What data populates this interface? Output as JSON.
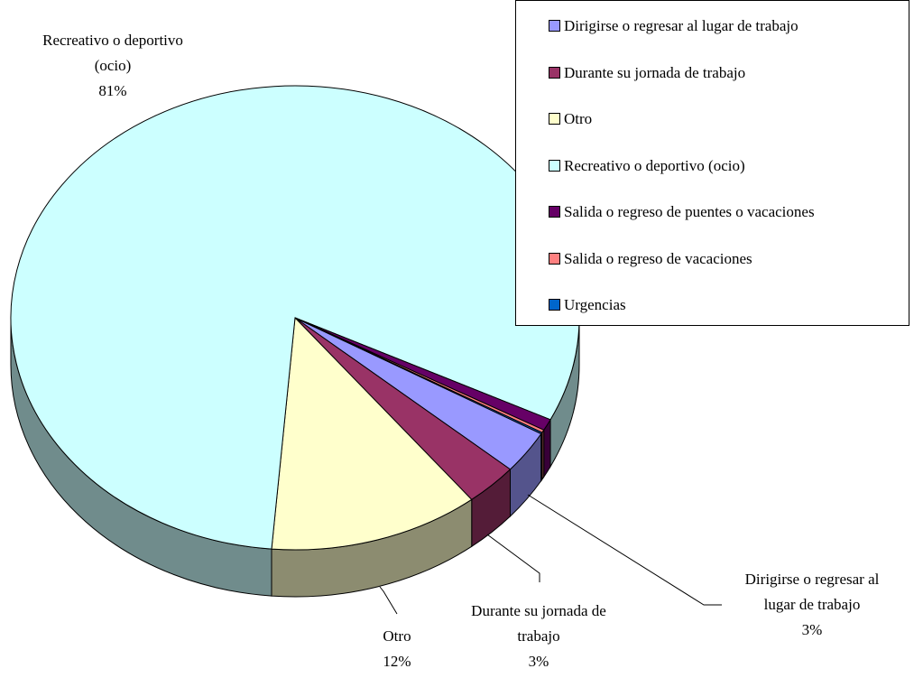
{
  "chart_data": {
    "type": "pie3d",
    "categories": [
      "Dirigirse o regresar al lugar de trabajo",
      "Durante su jornada de trabajo",
      "Otro",
      "Recreativo o deportivo (ocio)",
      "Salida o regreso de puentes o vacaciones",
      "Salida o regreso de vacaciones",
      "Urgencias"
    ],
    "values": [
      3,
      3,
      12,
      81,
      0.8,
      0.2,
      0.1
    ],
    "value_labels": [
      "3%",
      "3%",
      "12%",
      "81%",
      null,
      null,
      null
    ],
    "colors": [
      "#9999ff",
      "#993366",
      "#ffffcc",
      "#ccffff",
      "#660066",
      "#ff8080",
      "#0066cc"
    ],
    "legend": "top-right"
  }
}
